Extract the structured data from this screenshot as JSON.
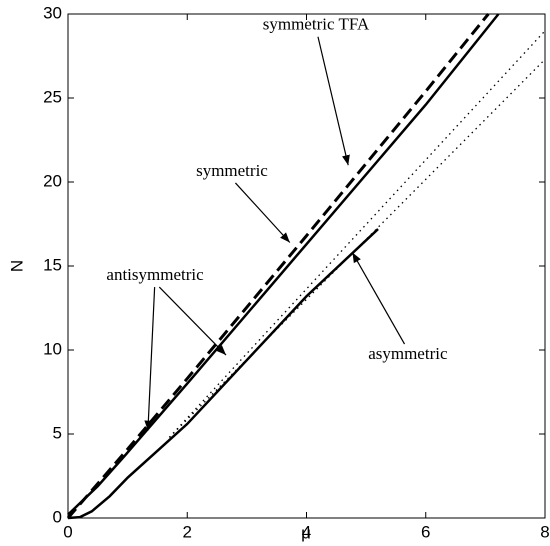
{
  "chart_data": {
    "type": "line",
    "xlabel": "μ",
    "ylabel": "N",
    "xlim": [
      0,
      8
    ],
    "ylim": [
      0,
      30
    ],
    "xticks": [
      0,
      2,
      4,
      6,
      8
    ],
    "yticks": [
      0,
      5,
      10,
      15,
      20,
      25,
      30
    ],
    "series": [
      {
        "color": "#000000",
        "style": "solid",
        "x": [
          0,
          0.5,
          1,
          2,
          4,
          6,
          7.22
        ],
        "values": [
          0.2,
          1.9,
          3.9,
          8.0,
          16.3,
          24.6,
          30
        ]
      },
      {
        "color": "#000000",
        "style": "dashed",
        "x": [
          0,
          1,
          2,
          4,
          6,
          7.05
        ],
        "values": [
          0,
          4.1,
          8.3,
          16.8,
          25.4,
          30
        ]
      },
      {
        "color": "#000000",
        "style": "solid",
        "x": [
          0,
          0.2,
          0.4,
          0.7,
          1,
          1.5,
          2,
          3,
          4,
          5.2
        ],
        "values": [
          0,
          0.05,
          0.4,
          1.3,
          2.4,
          4.0,
          5.6,
          9.4,
          13.2,
          17.2
        ]
      },
      {
        "color": "#000000",
        "style": "dotted",
        "x": [
          1.7,
          8
        ],
        "values": [
          4.8,
          29
        ]
      },
      {
        "color": "#000000",
        "style": "dotted",
        "x": [
          1.7,
          8
        ],
        "values": [
          4.8,
          27.3
        ]
      }
    ],
    "annotations": [
      {
        "text": "symmetric TFA",
        "x": 4.16,
        "y": 29.3,
        "arrows": [
          [
            4.7,
            21.0
          ]
        ]
      },
      {
        "text": "symmetric",
        "x": 2.75,
        "y": 20.6,
        "arrows": [
          [
            3.72,
            16.4
          ]
        ]
      },
      {
        "text": "antisymmetric",
        "x": 1.46,
        "y": 14.4,
        "arrows": [
          [
            1.34,
            5.2
          ],
          [
            2.65,
            9.7
          ]
        ]
      },
      {
        "text": "asymmetric",
        "x": 5.7,
        "y": 9.7,
        "arrows": [
          [
            4.77,
            15.8
          ]
        ]
      }
    ]
  }
}
